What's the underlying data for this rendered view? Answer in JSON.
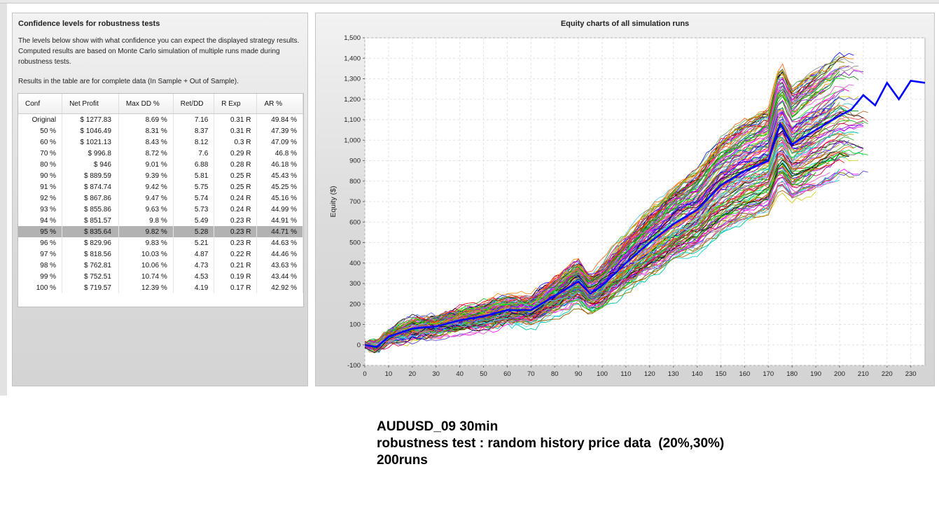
{
  "left_panel": {
    "title": "Confidence levels for robustness tests",
    "description": "The levels below show with what confidence you can expect the displayed strategy results. Computed results are based on Monte Carlo simulation of multiple runs made during robustness tests.",
    "note": "Results in the table are for complete data (In Sample + Out of Sample).",
    "table": {
      "headers": [
        "Conf",
        "Net Profit",
        "Max DD %",
        "Ret/DD",
        "R Exp",
        "AR %"
      ],
      "selected_row": "95 %",
      "rows": [
        [
          "Original",
          "$ 1277.83",
          "8.69 %",
          "7.16",
          "0.31 R",
          "49.84 %"
        ],
        [
          "50 %",
          "$ 1046.49",
          "8.31 %",
          "8.37",
          "0.31 R",
          "47.39 %"
        ],
        [
          "60 %",
          "$ 1021.13",
          "8.43 %",
          "8.12",
          "0.3 R",
          "47.09 %"
        ],
        [
          "70 %",
          "$ 996.8",
          "8.72 %",
          "7.6",
          "0.29 R",
          "46.8 %"
        ],
        [
          "80 %",
          "$ 946",
          "9.01 %",
          "6.88",
          "0.28 R",
          "46.18 %"
        ],
        [
          "90 %",
          "$ 889.59",
          "9.39 %",
          "5.81",
          "0.25 R",
          "45.43 %"
        ],
        [
          "91 %",
          "$ 874.74",
          "9.42 %",
          "5.75",
          "0.25 R",
          "45.25 %"
        ],
        [
          "92 %",
          "$ 867.86",
          "9.47 %",
          "5.74",
          "0.24 R",
          "45.16 %"
        ],
        [
          "93 %",
          "$ 855.86",
          "9.63 %",
          "5.73",
          "0.24 R",
          "44.99 %"
        ],
        [
          "94 %",
          "$ 851.57",
          "9.8 %",
          "5.49",
          "0.23 R",
          "44.91 %"
        ],
        [
          "95 %",
          "$ 835.64",
          "9.82 %",
          "5.28",
          "0.23 R",
          "44.71 %"
        ],
        [
          "96 %",
          "$ 829.96",
          "9.83 %",
          "5.21",
          "0.23 R",
          "44.63 %"
        ],
        [
          "97 %",
          "$ 818.56",
          "10.03 %",
          "4.87",
          "0.22 R",
          "44.46 %"
        ],
        [
          "98 %",
          "$ 762.81",
          "10.06 %",
          "4.73",
          "0.21 R",
          "43.63 %"
        ],
        [
          "99 %",
          "$ 752.51",
          "10.74 %",
          "4.53",
          "0.19 R",
          "43.44 %"
        ],
        [
          "100 %",
          "$ 719.57",
          "12.39 %",
          "4.19",
          "0.17 R",
          "42.92 %"
        ]
      ]
    }
  },
  "chart_data": {
    "type": "line",
    "title": "Equity charts of all simulation runs",
    "xlabel": "",
    "ylabel": "Equity ($)",
    "xlim": [
      0,
      236
    ],
    "ylim": [
      -100,
      1500
    ],
    "x_ticks": [
      0,
      10,
      20,
      30,
      40,
      50,
      60,
      70,
      80,
      90,
      100,
      110,
      120,
      130,
      140,
      150,
      160,
      170,
      180,
      190,
      200,
      210,
      220,
      230
    ],
    "y_ticks": [
      -100,
      0,
      100,
      200,
      300,
      400,
      500,
      600,
      700,
      800,
      900,
      1000,
      1100,
      1200,
      1300,
      1400,
      1500
    ],
    "y_tick_labels": [
      "-100",
      "0",
      "100",
      "200",
      "300",
      "400",
      "500",
      "600",
      "700",
      "800",
      "900",
      "1,000",
      "1,100",
      "1,200",
      "1,300",
      "1,400",
      "1,500"
    ],
    "grid": true,
    "simulation_runs": 200,
    "simulation_line_colors": [
      "#ff0000",
      "#00aa00",
      "#0000ff",
      "#ff00ff",
      "#00cccc",
      "#cccc00",
      "#ff8800",
      "#008800",
      "#8800ff",
      "#888888",
      "#aa5500",
      "#00ff00",
      "#ff5555",
      "#5555ff",
      "#55aa55",
      "#000000",
      "#ff66cc",
      "#66ccff",
      "#999900",
      "#cc0066"
    ],
    "series": [
      {
        "name": "",
        "color": "#0000ff",
        "emphasized": true,
        "x": [
          0,
          5,
          10,
          15,
          20,
          30,
          40,
          50,
          60,
          70,
          80,
          90,
          95,
          100,
          110,
          120,
          130,
          140,
          150,
          160,
          170,
          175,
          180,
          190,
          200,
          205,
          210,
          215,
          220,
          225,
          230,
          236
        ],
        "y": [
          0,
          -10,
          40,
          60,
          80,
          90,
          120,
          140,
          170,
          170,
          240,
          310,
          250,
          290,
          400,
          500,
          590,
          660,
          780,
          850,
          900,
          1080,
          980,
          1050,
          1120,
          1150,
          1220,
          1170,
          1280,
          1200,
          1290,
          1280
        ]
      }
    ]
  },
  "caption": {
    "line1": "AUDUSD_09 30min",
    "line2": "robustness test : random history price data  (20%,30%)",
    "line3": "200runs"
  }
}
